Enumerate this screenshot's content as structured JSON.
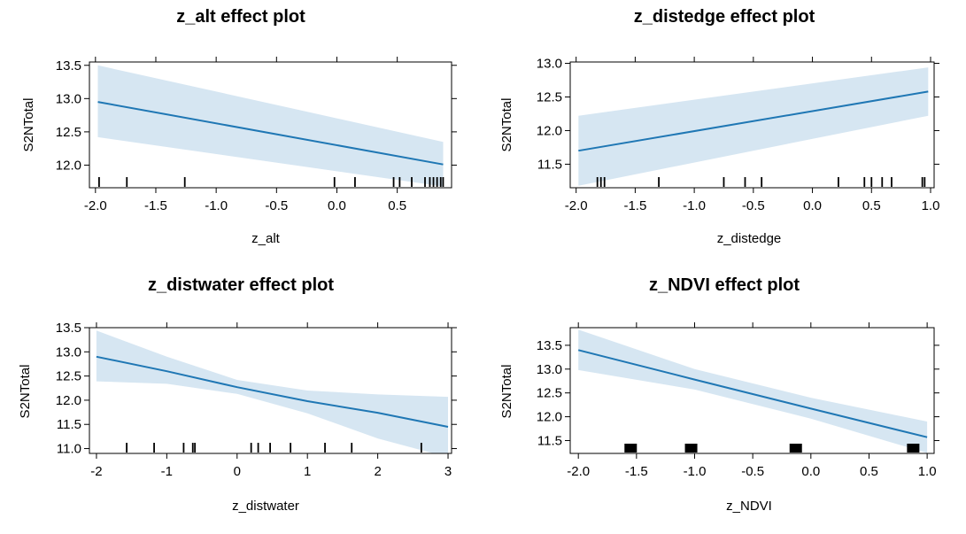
{
  "figure": {
    "layout": "2x2 grid of effect plots"
  },
  "chart_data": [
    {
      "type": "line",
      "title": "z_alt effect plot",
      "xlabel": "z_alt",
      "ylabel": "S2NTotal",
      "xlim": [
        -2.05,
        0.95
      ],
      "ylim": [
        11.66,
        13.55
      ],
      "xticks": [
        -2.0,
        -1.5,
        -1.0,
        -0.5,
        0.0,
        0.5
      ],
      "xtick_labels": [
        "-2.0",
        "-1.5",
        "-1.0",
        "-0.5",
        "0.0",
        "0.5"
      ],
      "yticks": [
        12.0,
        12.5,
        13.0,
        13.5
      ],
      "ytick_labels": [
        "12.0",
        "12.5",
        "13.0",
        "13.5"
      ],
      "fit": {
        "x": [
          -1.98,
          0.88
        ],
        "y": [
          12.95,
          12.01
        ]
      },
      "band": {
        "x": [
          -1.98,
          0.88
        ],
        "lower": [
          12.42,
          11.68
        ],
        "upper": [
          13.5,
          12.35
        ]
      },
      "rug": [
        -1.97,
        -1.74,
        -1.26,
        -0.02,
        0.15,
        0.47,
        0.52,
        0.62,
        0.73,
        0.77,
        0.8,
        0.83,
        0.86,
        0.88
      ],
      "rug_style": "line",
      "line_color": "#1f77b4",
      "band_color": "#d6e6f2",
      "grid": false
    },
    {
      "type": "line",
      "title": "z_distedge effect plot",
      "xlabel": "z_distedge",
      "ylabel": "S2NTotal",
      "xlim": [
        -2.05,
        1.03
      ],
      "ylim": [
        11.15,
        13.02
      ],
      "xticks": [
        -2.0,
        -1.5,
        -1.0,
        -0.5,
        0.0,
        0.5,
        1.0
      ],
      "xtick_labels": [
        "-2.0",
        "-1.5",
        "-1.0",
        "-0.5",
        "0.0",
        "0.5",
        "1.0"
      ],
      "yticks": [
        11.5,
        12.0,
        12.5,
        13.0
      ],
      "ytick_labels": [
        "11.5",
        "12.0",
        "12.5",
        "13.0"
      ],
      "fit": {
        "x": [
          -1.98,
          0.98
        ],
        "y": [
          11.7,
          12.58
        ]
      },
      "band": {
        "x": [
          -1.98,
          0.98
        ],
        "lower": [
          11.18,
          12.22
        ],
        "upper": [
          12.22,
          12.94
        ]
      },
      "rug": [
        -1.82,
        -1.79,
        -1.76,
        -1.3,
        -0.75,
        -0.57,
        -0.43,
        0.22,
        0.44,
        0.5,
        0.59,
        0.67,
        0.93,
        0.95
      ],
      "rug_style": "line",
      "line_color": "#1f77b4",
      "band_color": "#d6e6f2",
      "grid": false
    },
    {
      "type": "line",
      "title": "z_distwater effect plot",
      "xlabel": "z_distwater",
      "ylabel": "S2NTotal",
      "xlim": [
        -2.1,
        3.05
      ],
      "ylim": [
        10.9,
        13.5
      ],
      "xticks": [
        -2,
        -1,
        0,
        1,
        2,
        3
      ],
      "xtick_labels": [
        "-2",
        "-1",
        "0",
        "1",
        "2",
        "3"
      ],
      "yticks": [
        11.0,
        11.5,
        12.0,
        12.5,
        13.0,
        13.5
      ],
      "ytick_labels": [
        "11.0",
        "11.5",
        "12.0",
        "12.5",
        "13.0",
        "13.5"
      ],
      "fit": {
        "x": [
          -2.0,
          -1.0,
          0.0,
          1.0,
          2.0,
          3.0
        ],
        "y": [
          12.9,
          12.6,
          12.27,
          11.98,
          11.74,
          11.45
        ]
      },
      "band": {
        "x": [
          -2.0,
          -1.0,
          0.0,
          1.0,
          2.0,
          3.0
        ],
        "lower": [
          12.39,
          12.34,
          12.13,
          11.73,
          11.21,
          10.82
        ],
        "upper": [
          13.44,
          12.9,
          12.42,
          12.2,
          12.12,
          12.07
        ]
      },
      "rug": [
        -1.57,
        -1.18,
        -0.76,
        -0.63,
        -0.6,
        0.2,
        0.3,
        0.47,
        0.76,
        1.25,
        1.63,
        2.62
      ],
      "rug_style": "line",
      "line_color": "#1f77b4",
      "band_color": "#d6e6f2",
      "grid": false
    },
    {
      "type": "line",
      "title": "z_NDVI effect plot",
      "xlabel": "z_NDVI",
      "ylabel": "S2NTotal",
      "xlim": [
        -2.07,
        1.06
      ],
      "ylim": [
        11.23,
        13.87
      ],
      "xticks": [
        -2.0,
        -1.5,
        -1.0,
        -0.5,
        0.0,
        0.5,
        1.0
      ],
      "xtick_labels": [
        "-2.0",
        "-1.5",
        "-1.0",
        "-0.5",
        "0.0",
        "0.5",
        "1.0"
      ],
      "yticks": [
        11.5,
        12.0,
        12.5,
        13.0,
        13.5
      ],
      "ytick_labels": [
        "11.5",
        "12.0",
        "12.5",
        "13.0",
        "13.5"
      ],
      "fit": {
        "x": [
          -2.0,
          -1.0,
          0.0,
          1.0
        ],
        "y": [
          13.4,
          12.78,
          12.17,
          11.57
        ]
      },
      "band": {
        "x": [
          -2.0,
          -1.0,
          0.0,
          1.0
        ],
        "lower": [
          12.98,
          12.57,
          11.96,
          11.24
        ],
        "upper": [
          13.83,
          13.0,
          12.4,
          11.9
        ]
      },
      "rug": [
        -1.55,
        -1.03,
        -0.13,
        0.88
      ],
      "rug_style": "block",
      "line_color": "#1f77b4",
      "band_color": "#d6e6f2",
      "grid": false
    }
  ]
}
